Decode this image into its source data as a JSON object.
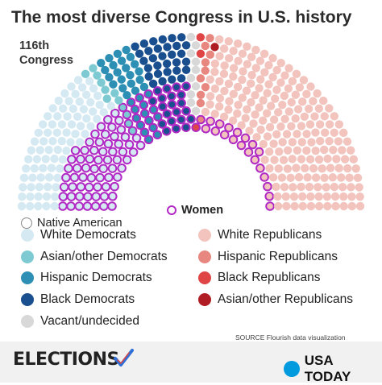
{
  "title": "The most diverse Congress in U.S. history",
  "subtitle_line1": "116th",
  "subtitle_line2": "Congress",
  "legend": {
    "native_american": "Native American",
    "women": "Women",
    "white_democrats": "White Democrats",
    "asian_democrats": "Asian/other Democrats",
    "hispanic_democrats": "Hispanic Democrats",
    "black_democrats": "Black Democrats",
    "vacant": "Vacant/undecided",
    "white_republicans": "White Republicans",
    "hispanic_republicans": "Hispanic Republicans",
    "black_republicans": "Black Republicans",
    "asian_republicans": "Asian/other Republicans"
  },
  "source": "SOURCE Flourish data visualization",
  "footer": {
    "elections": "ELECTIONS",
    "usa_today": "USA TODAY"
  },
  "colors": {
    "white_democrats": "#d5e9f3",
    "asian_democrats": "#7ecad3",
    "hispanic_democrats": "#2d8fb4",
    "black_democrats": "#1a4f8f",
    "white_republicans": "#f2c4bd",
    "hispanic_republicans": "#e8877f",
    "black_republicans": "#df4545",
    "asian_republicans": "#b01c24",
    "vacant": "#d8d8d8",
    "women_ring": "#b129c4",
    "women_fill": "#ffffff",
    "native_ring": "#999999",
    "usa_today_blue": "#009bde",
    "check_blue": "#2f6fd6"
  },
  "chart_data": {
    "type": "parliament",
    "series": [
      {
        "name": "White Democrats",
        "values": [
          146
        ]
      },
      {
        "name": "Asian/other Democrats",
        "values": [
          12
        ]
      },
      {
        "name": "Hispanic Democrats",
        "values": [
          37
        ]
      },
      {
        "name": "Black Democrats",
        "values": [
          52
        ]
      },
      {
        "name": "White Republicans",
        "values": [
          227
        ]
      },
      {
        "name": "Hispanic Republicans",
        "values": [
          10
        ]
      },
      {
        "name": "Black Republicans",
        "values": [
          3
        ]
      },
      {
        "name": "Asian/other Republicans",
        "values": [
          1
        ]
      },
      {
        "name": "Vacant/undecided",
        "values": [
          10
        ]
      }
    ],
    "women": {
      "democrats": 106,
      "republicans": 21
    }
  }
}
